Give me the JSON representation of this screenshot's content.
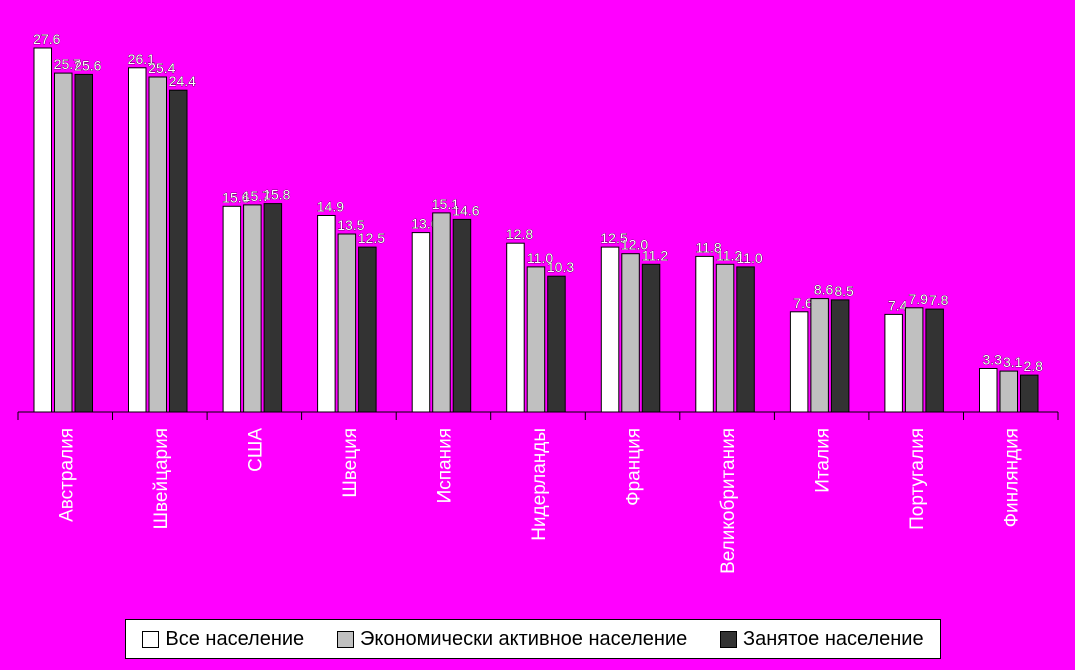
{
  "chart_data": {
    "type": "bar",
    "categories": [
      "Австралия",
      "Швейцария",
      "США",
      "Швеция",
      "Испания",
      "Нидерланды",
      "Франция",
      "Великобритания",
      "Италия",
      "Португалия",
      "Финляндия"
    ],
    "series": [
      {
        "name": "Все население",
        "color": "#ffffff",
        "values": [
          27.6,
          26.1,
          15.6,
          14.9,
          13.6,
          12.8,
          12.5,
          11.8,
          7.6,
          7.4,
          3.3
        ]
      },
      {
        "name": "Экономически активное население",
        "color": "#c0c0c0",
        "values": [
          25.7,
          25.4,
          15.7,
          13.5,
          15.1,
          11.0,
          12.0,
          11.2,
          8.6,
          7.9,
          3.1
        ]
      },
      {
        "name": "Занятое население",
        "color": "#333333",
        "values": [
          25.6,
          24.4,
          15.8,
          12.5,
          14.6,
          10.3,
          11.2,
          11.0,
          8.5,
          7.8,
          2.8
        ]
      }
    ],
    "ylim": [
      0,
      27.6
    ],
    "grid": false,
    "legend_position": "bottom",
    "data_labels": true
  }
}
